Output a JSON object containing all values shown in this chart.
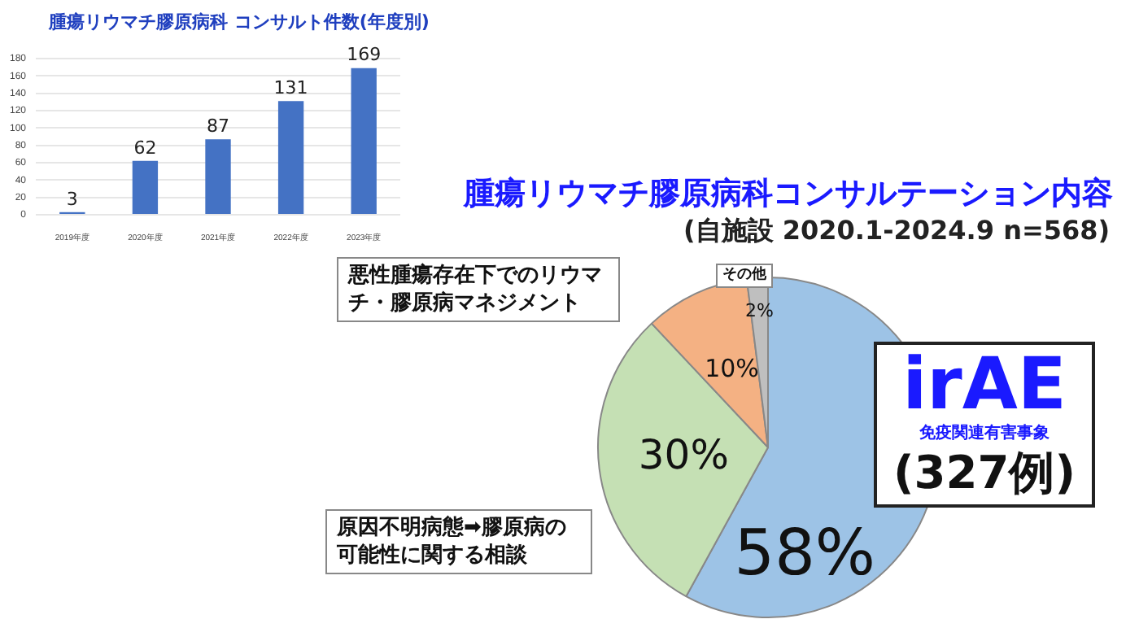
{
  "chart_data": [
    {
      "type": "bar",
      "title": "腫瘍リウマチ膠原病科 コンサルト件数(年度別)",
      "categories": [
        "2019年度",
        "2020年度",
        "2021年度",
        "2022年度",
        "2023年度"
      ],
      "values": [
        3,
        62,
        87,
        131,
        169
      ],
      "color": "#4472c4",
      "ylim": [
        0,
        180
      ],
      "yticks": [
        0,
        20,
        40,
        60,
        80,
        100,
        120,
        140,
        160,
        180
      ],
      "grid": "y",
      "data_labels": true
    },
    {
      "type": "pie",
      "title": "腫瘍リウマチ膠原病科コンサルテーション内容",
      "subtitle": "(自施設 2020.1-2024.9 n=568)",
      "categories": [
        "irAE\n免疫関連有害事象\n(327例)",
        "原因不明病態➡膠原病の可能性に関する相談",
        "悪性腫瘍存在下でのリウマチ・膠原病マネジメント",
        "その他"
      ],
      "values": [
        58,
        30,
        10,
        2
      ],
      "colors": [
        "#9dc3e6",
        "#c5e0b4",
        "#f4b183",
        "#bfbfbf"
      ],
      "value_labels": [
        "58%",
        "30%",
        "10%",
        "2%"
      ]
    }
  ]
}
